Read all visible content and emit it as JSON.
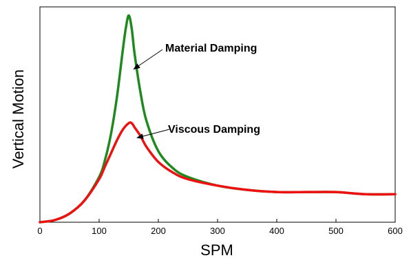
{
  "chart_data": {
    "type": "line",
    "title": "",
    "xlabel": "SPM",
    "ylabel": "Vertical Motion",
    "xlim": [
      0,
      600
    ],
    "ylim": [
      0,
      1
    ],
    "x_ticks": [
      "0",
      "100",
      "200",
      "300",
      "400",
      "500",
      "600"
    ],
    "grid": false,
    "legend": "none",
    "series": [
      {
        "label": "Material Damping",
        "color": "#1e8a1e",
        "x": [
          0,
          25,
          50,
          75,
          100,
          110,
          120,
          130,
          140,
          145,
          150,
          155,
          160,
          170,
          180,
          200,
          225,
          250,
          300,
          350,
          400,
          450,
          500,
          550,
          600
        ],
        "y": [
          0.0,
          0.01,
          0.04,
          0.1,
          0.21,
          0.29,
          0.41,
          0.58,
          0.8,
          0.9,
          0.96,
          0.9,
          0.78,
          0.6,
          0.47,
          0.33,
          0.25,
          0.21,
          0.17,
          0.15,
          0.14,
          0.14,
          0.14,
          0.13,
          0.13
        ]
      },
      {
        "label": "Viscous Damping",
        "color": "#ee1111",
        "x": [
          0,
          25,
          50,
          75,
          100,
          110,
          120,
          130,
          140,
          150,
          155,
          160,
          170,
          180,
          200,
          225,
          250,
          300,
          350,
          400,
          450,
          500,
          550,
          600
        ],
        "y": [
          0.0,
          0.01,
          0.04,
          0.1,
          0.2,
          0.26,
          0.32,
          0.38,
          0.43,
          0.46,
          0.46,
          0.44,
          0.4,
          0.35,
          0.28,
          0.23,
          0.2,
          0.17,
          0.15,
          0.14,
          0.14,
          0.14,
          0.13,
          0.13
        ]
      }
    ],
    "annotations": [
      {
        "text": "Material Damping",
        "x": 210,
        "y": 0.8
      },
      {
        "text": "Viscous Damping",
        "x": 200,
        "y": 0.45
      }
    ]
  }
}
